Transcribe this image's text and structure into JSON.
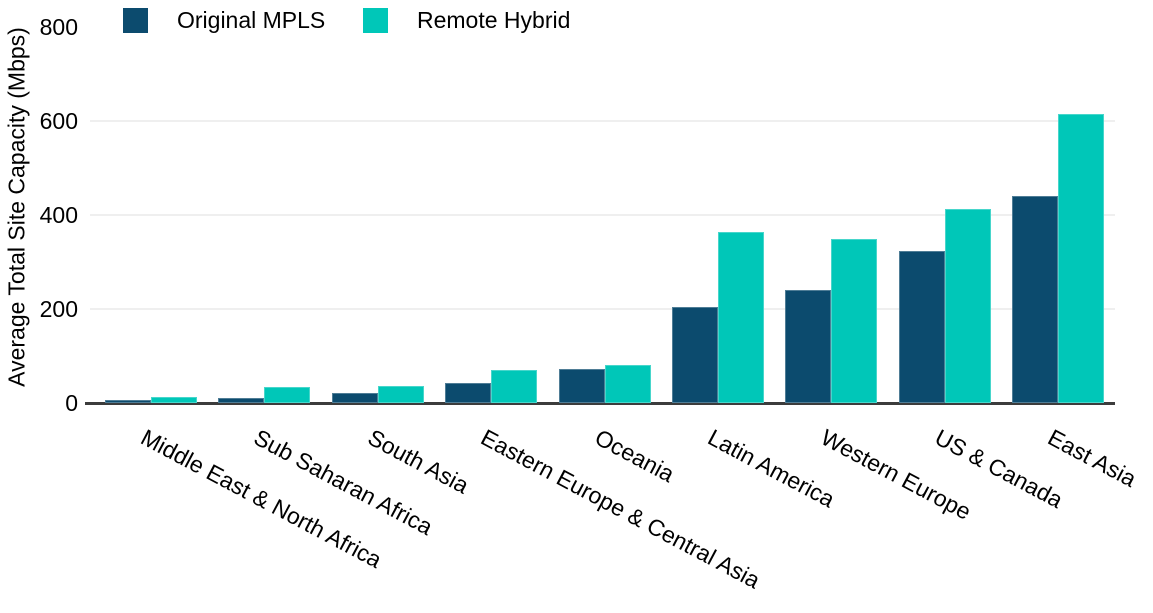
{
  "chart_data": {
    "type": "bar",
    "title": "",
    "xlabel": "",
    "ylabel": "Average Total Site Capacity (Mbps)",
    "categories": [
      "Middle East & North Africa",
      "Sub Saharan Africa",
      "South Asia",
      "Eastern Europe & Central Asia",
      "Oceania",
      "Latin America",
      "Western Europe",
      "US & Canada",
      "East Asia"
    ],
    "series": [
      {
        "name": "Original MPLS",
        "color": "#0C4B6E",
        "values": [
          6,
          10,
          21,
          42,
          73,
          205,
          240,
          323,
          440
        ]
      },
      {
        "name": "Remote Hybrid",
        "color": "#00C7B8",
        "values": [
          13,
          35,
          36,
          70,
          80,
          363,
          350,
          413,
          615
        ]
      }
    ],
    "ylim": [
      0,
      800
    ],
    "yticks": [
      0,
      200,
      400,
      600,
      800
    ],
    "gridlines": [
      200,
      400,
      600
    ],
    "grid": true,
    "legend_position": "top-left",
    "axis_color": "#3C3C3C",
    "gridline_color": "#EFEFEF",
    "text_color": "#000000"
  }
}
